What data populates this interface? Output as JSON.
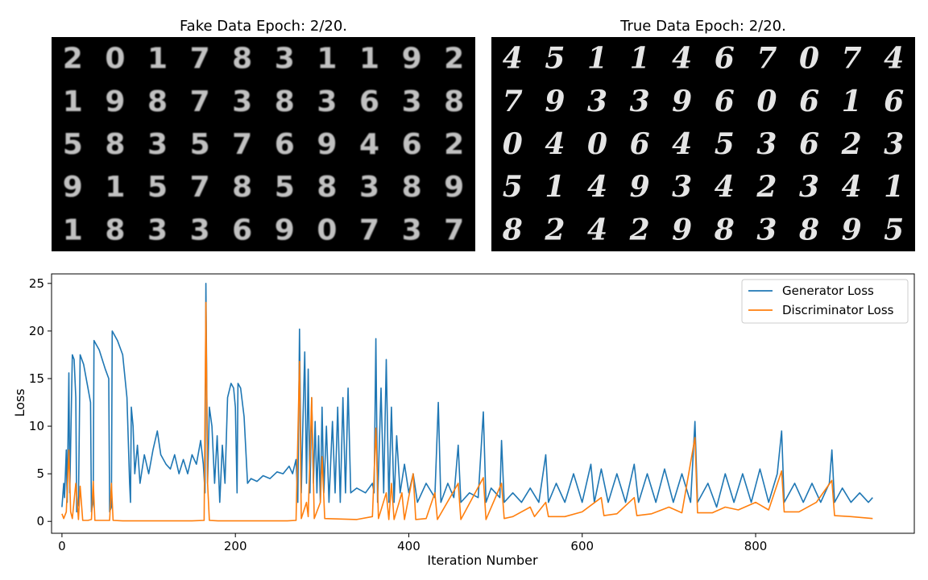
{
  "panels": {
    "fake_title": "Fake Data Epoch: 2/20.",
    "true_title": "True Data Epoch: 2/20.",
    "fake_digits": [
      "2",
      "0",
      "1",
      "7",
      "8",
      "3",
      "1",
      "1",
      "9",
      "2",
      "1",
      "9",
      "8",
      "7",
      "3",
      "8",
      "3",
      "6",
      "3",
      "8",
      "5",
      "8",
      "3",
      "5",
      "7",
      "6",
      "9",
      "4",
      "6",
      "2",
      "9",
      "1",
      "5",
      "7",
      "8",
      "5",
      "8",
      "3",
      "8",
      "9",
      "1",
      "8",
      "3",
      "3",
      "6",
      "9",
      "0",
      "7",
      "3",
      "7"
    ],
    "true_digits": [
      "4",
      "5",
      "1",
      "1",
      "4",
      "6",
      "7",
      "0",
      "7",
      "4",
      "7",
      "9",
      "3",
      "3",
      "9",
      "6",
      "0",
      "6",
      "1",
      "6",
      "0",
      "4",
      "0",
      "6",
      "4",
      "5",
      "3",
      "6",
      "2",
      "3",
      "5",
      "1",
      "4",
      "9",
      "3",
      "4",
      "2",
      "3",
      "4",
      "1",
      "8",
      "2",
      "4",
      "2",
      "9",
      "8",
      "3",
      "8",
      "9",
      "5"
    ]
  },
  "chart_data": {
    "type": "line",
    "xlabel": "Iteration Number",
    "ylabel": "Loss",
    "xlim": [
      -12,
      983
    ],
    "ylim": [
      -1.25,
      26
    ],
    "xticks": [
      0,
      200,
      400,
      600,
      800
    ],
    "yticks": [
      0,
      5,
      10,
      15,
      20,
      25
    ],
    "legend_position": "top-right",
    "series": [
      {
        "name": "Generator Loss",
        "color": "#1f77b4",
        "points": [
          [
            0,
            1.5
          ],
          [
            2,
            4
          ],
          [
            3,
            2.5
          ],
          [
            5,
            7.5
          ],
          [
            6,
            2
          ],
          [
            8,
            15.6
          ],
          [
            9,
            3
          ],
          [
            10,
            8
          ],
          [
            12,
            17.5
          ],
          [
            14,
            17
          ],
          [
            16,
            13
          ],
          [
            17,
            1
          ],
          [
            19,
            2
          ],
          [
            21,
            17.5
          ],
          [
            25,
            16.5
          ],
          [
            30,
            14
          ],
          [
            33,
            12.5
          ],
          [
            34,
            1
          ],
          [
            36,
            2
          ],
          [
            37,
            19
          ],
          [
            43,
            18
          ],
          [
            50,
            16
          ],
          [
            54,
            15
          ],
          [
            55,
            1
          ],
          [
            57,
            1.5
          ],
          [
            58,
            20
          ],
          [
            64,
            19
          ],
          [
            70,
            17.5
          ],
          [
            75,
            13
          ],
          [
            78,
            4
          ],
          [
            79,
            2
          ],
          [
            80,
            12
          ],
          [
            82,
            10
          ],
          [
            84,
            5
          ],
          [
            87,
            8
          ],
          [
            90,
            4
          ],
          [
            95,
            7
          ],
          [
            100,
            5
          ],
          [
            105,
            7.5
          ],
          [
            110,
            9.5
          ],
          [
            114,
            7
          ],
          [
            120,
            6
          ],
          [
            125,
            5.5
          ],
          [
            130,
            7
          ],
          [
            135,
            5
          ],
          [
            140,
            6.5
          ],
          [
            145,
            5
          ],
          [
            150,
            7
          ],
          [
            155,
            6
          ],
          [
            160,
            8.5
          ],
          [
            163,
            6
          ],
          [
            165,
            3
          ],
          [
            166,
            25
          ],
          [
            168,
            4
          ],
          [
            170,
            12
          ],
          [
            173,
            10
          ],
          [
            176,
            4
          ],
          [
            179,
            9
          ],
          [
            182,
            2
          ],
          [
            185,
            8
          ],
          [
            188,
            4
          ],
          [
            191,
            13
          ],
          [
            195,
            14.5
          ],
          [
            198,
            14
          ],
          [
            200,
            12
          ],
          [
            202,
            3
          ],
          [
            203,
            14.5
          ],
          [
            206,
            14
          ],
          [
            210,
            11
          ],
          [
            214,
            4
          ],
          [
            218,
            4.5
          ],
          [
            225,
            4.2
          ],
          [
            232,
            4.8
          ],
          [
            240,
            4.5
          ],
          [
            248,
            5.2
          ],
          [
            255,
            5
          ],
          [
            262,
            5.8
          ],
          [
            266,
            5
          ],
          [
            270,
            6.5
          ],
          [
            272,
            2
          ],
          [
            274,
            20.2
          ],
          [
            276,
            3
          ],
          [
            278,
            11
          ],
          [
            280,
            17.8
          ],
          [
            282,
            4
          ],
          [
            284,
            16
          ],
          [
            286,
            3
          ],
          [
            288,
            13
          ],
          [
            290,
            4
          ],
          [
            292,
            10.5
          ],
          [
            294,
            3
          ],
          [
            296,
            9
          ],
          [
            298,
            2
          ],
          [
            300,
            12
          ],
          [
            302,
            3
          ],
          [
            305,
            10
          ],
          [
            308,
            2
          ],
          [
            312,
            10.5
          ],
          [
            315,
            3
          ],
          [
            318,
            12
          ],
          [
            321,
            2
          ],
          [
            324,
            13
          ],
          [
            327,
            3
          ],
          [
            330,
            14
          ],
          [
            333,
            3
          ],
          [
            340,
            3.5
          ],
          [
            350,
            3
          ],
          [
            358,
            4
          ],
          [
            360,
            3
          ],
          [
            362,
            19.2
          ],
          [
            364,
            2
          ],
          [
            368,
            14
          ],
          [
            371,
            3
          ],
          [
            374,
            17
          ],
          [
            377,
            2
          ],
          [
            380,
            12
          ],
          [
            383,
            2
          ],
          [
            386,
            9
          ],
          [
            390,
            3
          ],
          [
            395,
            6
          ],
          [
            400,
            3
          ],
          [
            405,
            5
          ],
          [
            410,
            2
          ],
          [
            420,
            4
          ],
          [
            430,
            2.5
          ],
          [
            434,
            12.5
          ],
          [
            437,
            2
          ],
          [
            445,
            4
          ],
          [
            452,
            2.5
          ],
          [
            457,
            8
          ],
          [
            460,
            2
          ],
          [
            470,
            3
          ],
          [
            480,
            2.5
          ],
          [
            486,
            11.5
          ],
          [
            489,
            2
          ],
          [
            495,
            3.5
          ],
          [
            505,
            2.5
          ],
          [
            507,
            8.5
          ],
          [
            510,
            2
          ],
          [
            520,
            3
          ],
          [
            530,
            2
          ],
          [
            540,
            3.5
          ],
          [
            550,
            2
          ],
          [
            558,
            7
          ],
          [
            561,
            2
          ],
          [
            570,
            4
          ],
          [
            580,
            2
          ],
          [
            590,
            5
          ],
          [
            600,
            2
          ],
          [
            610,
            6
          ],
          [
            614,
            2
          ],
          [
            622,
            5.5
          ],
          [
            630,
            2
          ],
          [
            640,
            5
          ],
          [
            650,
            2
          ],
          [
            660,
            6
          ],
          [
            665,
            2
          ],
          [
            675,
            5
          ],
          [
            685,
            2
          ],
          [
            695,
            5.5
          ],
          [
            705,
            2
          ],
          [
            715,
            5
          ],
          [
            725,
            2
          ],
          [
            730,
            10.5
          ],
          [
            733,
            2
          ],
          [
            745,
            4
          ],
          [
            755,
            1.5
          ],
          [
            765,
            5
          ],
          [
            775,
            2
          ],
          [
            785,
            5
          ],
          [
            795,
            2
          ],
          [
            805,
            5.5
          ],
          [
            815,
            2
          ],
          [
            825,
            5
          ],
          [
            830,
            9.5
          ],
          [
            833,
            2
          ],
          [
            845,
            4
          ],
          [
            855,
            2
          ],
          [
            865,
            4
          ],
          [
            875,
            2
          ],
          [
            885,
            4
          ],
          [
            888,
            7.5
          ],
          [
            891,
            2
          ],
          [
            900,
            3.5
          ],
          [
            910,
            2
          ],
          [
            920,
            3
          ],
          [
            930,
            2
          ],
          [
            935,
            2.5
          ]
        ]
      },
      {
        "name": "Discriminator Loss",
        "color": "#ff7f0e",
        "points": [
          [
            0,
            0.8
          ],
          [
            2,
            0.3
          ],
          [
            5,
            1
          ],
          [
            8,
            7.5
          ],
          [
            10,
            1
          ],
          [
            12,
            0.3
          ],
          [
            16,
            4
          ],
          [
            19,
            0.2
          ],
          [
            21,
            3.7
          ],
          [
            24,
            0.1
          ],
          [
            30,
            0.1
          ],
          [
            34,
            0.2
          ],
          [
            36,
            4.2
          ],
          [
            38,
            0.1
          ],
          [
            50,
            0.1
          ],
          [
            55,
            0.1
          ],
          [
            57,
            4
          ],
          [
            59,
            0.1
          ],
          [
            70,
            0.05
          ],
          [
            100,
            0.05
          ],
          [
            150,
            0.05
          ],
          [
            164,
            0.1
          ],
          [
            166,
            23
          ],
          [
            168,
            4
          ],
          [
            170,
            0.1
          ],
          [
            180,
            0.05
          ],
          [
            260,
            0.05
          ],
          [
            270,
            0.1
          ],
          [
            274,
            16.8
          ],
          [
            276,
            0.3
          ],
          [
            282,
            2
          ],
          [
            284,
            0.5
          ],
          [
            288,
            13
          ],
          [
            291,
            0.3
          ],
          [
            298,
            2
          ],
          [
            300,
            6.8
          ],
          [
            303,
            0.3
          ],
          [
            340,
            0.2
          ],
          [
            358,
            0.5
          ],
          [
            362,
            9.8
          ],
          [
            365,
            0.3
          ],
          [
            374,
            3
          ],
          [
            377,
            0.2
          ],
          [
            380,
            4
          ],
          [
            383,
            0.2
          ],
          [
            392,
            3
          ],
          [
            395,
            0.2
          ],
          [
            405,
            5
          ],
          [
            408,
            0.2
          ],
          [
            420,
            0.3
          ],
          [
            430,
            3
          ],
          [
            433,
            0.2
          ],
          [
            457,
            4
          ],
          [
            460,
            0.2
          ],
          [
            486,
            4.6
          ],
          [
            489,
            0.2
          ],
          [
            507,
            4
          ],
          [
            510,
            0.3
          ],
          [
            520,
            0.5
          ],
          [
            540,
            1.5
          ],
          [
            545,
            0.5
          ],
          [
            558,
            2
          ],
          [
            561,
            0.5
          ],
          [
            580,
            0.5
          ],
          [
            600,
            1
          ],
          [
            622,
            2.5
          ],
          [
            625,
            0.6
          ],
          [
            640,
            0.8
          ],
          [
            660,
            2.5
          ],
          [
            663,
            0.6
          ],
          [
            680,
            0.8
          ],
          [
            700,
            1.5
          ],
          [
            715,
            0.9
          ],
          [
            730,
            8.8
          ],
          [
            733,
            0.9
          ],
          [
            750,
            0.9
          ],
          [
            765,
            1.5
          ],
          [
            780,
            1.2
          ],
          [
            800,
            2
          ],
          [
            815,
            1.2
          ],
          [
            830,
            5.3
          ],
          [
            833,
            1
          ],
          [
            850,
            1
          ],
          [
            870,
            2
          ],
          [
            888,
            4.3
          ],
          [
            891,
            0.6
          ],
          [
            910,
            0.5
          ],
          [
            935,
            0.3
          ]
        ]
      }
    ]
  }
}
